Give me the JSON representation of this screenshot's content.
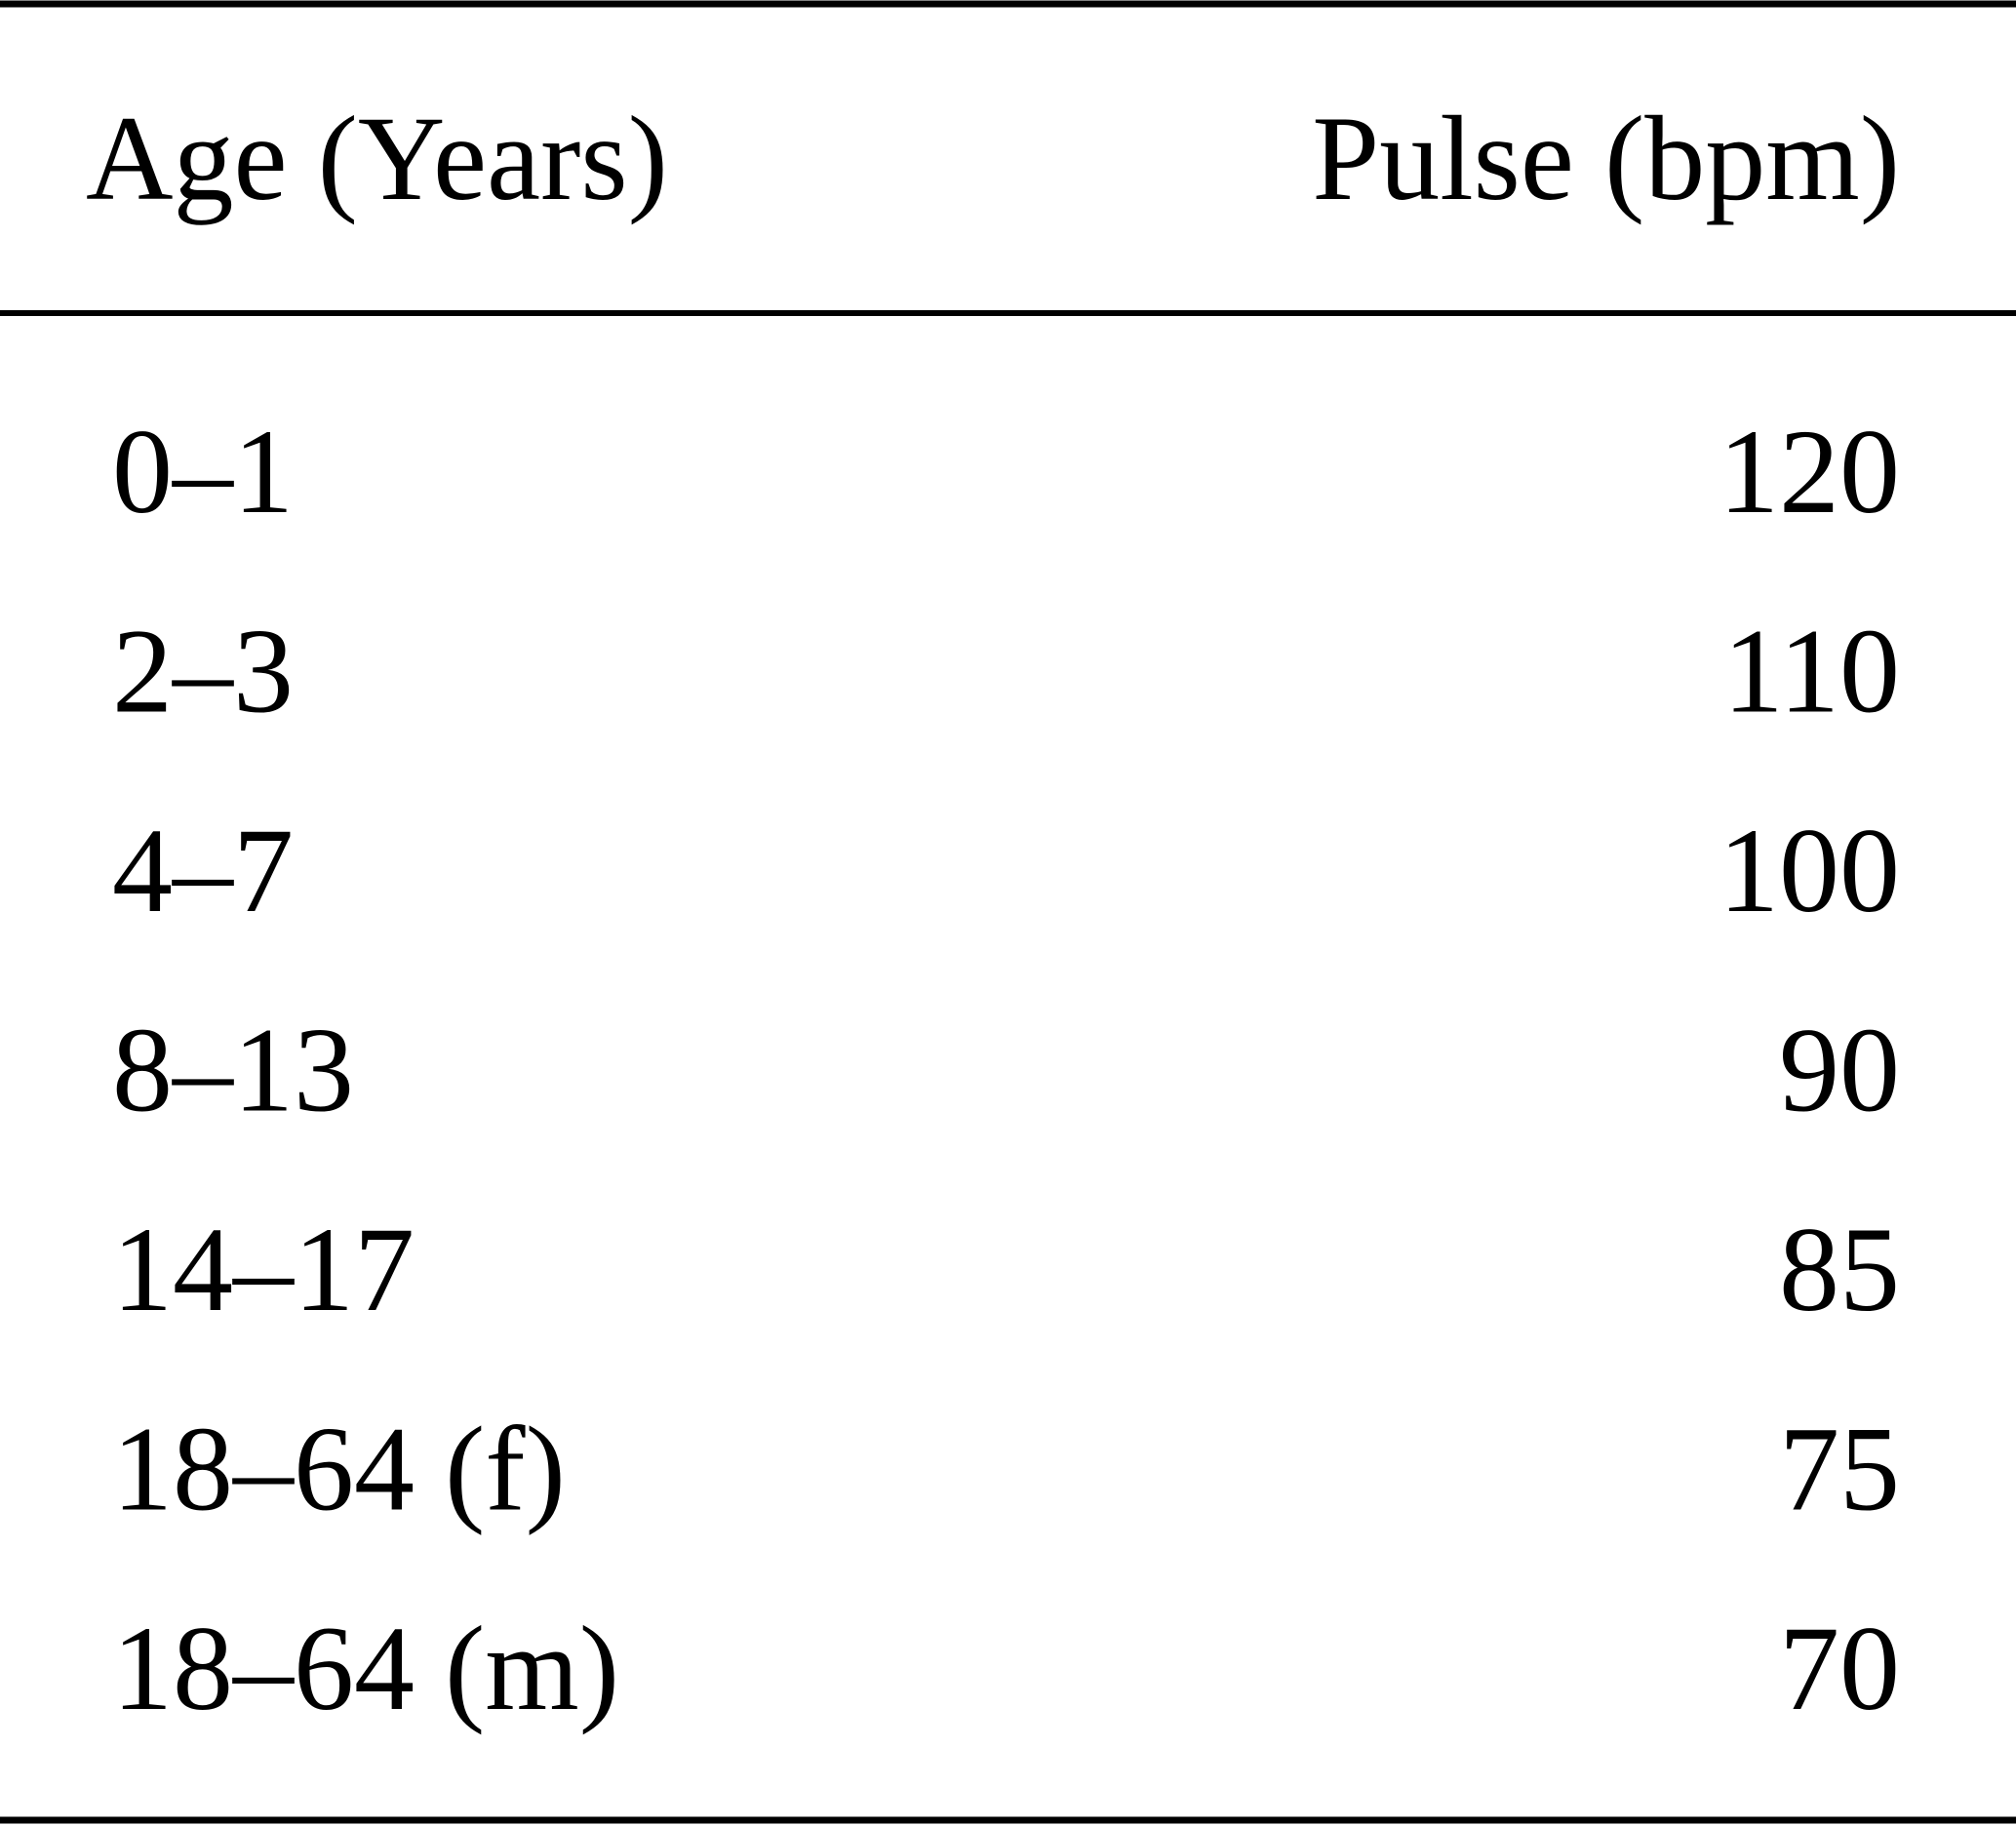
{
  "table": {
    "header": [
      "Age (Years)",
      "Pulse (bpm)"
    ],
    "rows": [
      [
        "0–1",
        120
      ],
      [
        "2–3",
        110
      ],
      [
        "4–7",
        100
      ],
      [
        "8–13",
        90
      ],
      [
        "14–17",
        85
      ],
      [
        "18–64 (f)",
        75
      ],
      [
        "18–64 (m)",
        70
      ]
    ]
  }
}
